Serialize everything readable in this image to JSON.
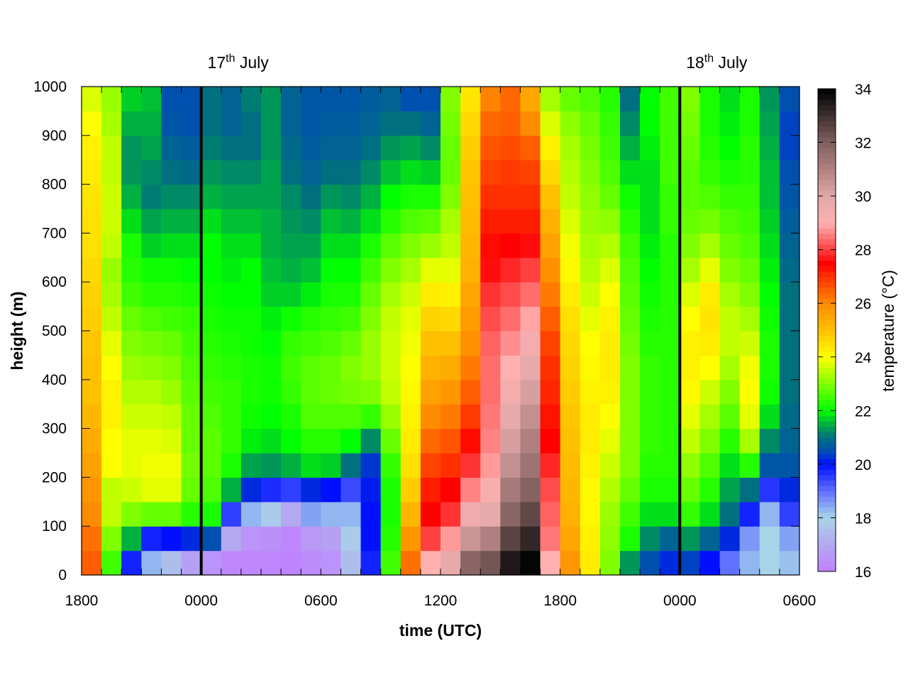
{
  "chart_data": {
    "type": "heatmap",
    "xlabel": "time (UTC)",
    "ylabel": "height (m)",
    "colorbar_label": "temperature (°C)",
    "x_unit": "hours since 1800 UTC 16th July",
    "xlim": [
      0,
      36
    ],
    "ylim": [
      0,
      1000
    ],
    "zlim": [
      16,
      34
    ],
    "x_ticks": [
      {
        "value": 0,
        "label": "1800"
      },
      {
        "value": 6,
        "label": "0000"
      },
      {
        "value": 12,
        "label": "0600"
      },
      {
        "value": 18,
        "label": "1200"
      },
      {
        "value": 24,
        "label": "1800"
      },
      {
        "value": 30,
        "label": "0000"
      },
      {
        "value": 36,
        "label": "0600"
      }
    ],
    "y_ticks": [
      {
        "value": 0,
        "label": "0"
      },
      {
        "value": 100,
        "label": "100"
      },
      {
        "value": 200,
        "label": "200"
      },
      {
        "value": 300,
        "label": "300"
      },
      {
        "value": 400,
        "label": "400"
      },
      {
        "value": 500,
        "label": "500"
      },
      {
        "value": 600,
        "label": "600"
      },
      {
        "value": 700,
        "label": "700"
      },
      {
        "value": 800,
        "label": "800"
      },
      {
        "value": 900,
        "label": "900"
      },
      {
        "value": 1000,
        "label": "1000"
      }
    ],
    "colorbar_ticks": [
      {
        "value": 16,
        "label": "16"
      },
      {
        "value": 18,
        "label": "18"
      },
      {
        "value": 20,
        "label": "20"
      },
      {
        "value": 22,
        "label": "22"
      },
      {
        "value": 24,
        "label": "24"
      },
      {
        "value": 26,
        "label": "26"
      },
      {
        "value": 28,
        "label": "28"
      },
      {
        "value": 30,
        "label": "30"
      },
      {
        "value": 32,
        "label": "32"
      },
      {
        "value": 34,
        "label": "34"
      }
    ],
    "date_markers": [
      {
        "hour": 6,
        "num": "17",
        "sup": "th",
        "month": " July"
      },
      {
        "hour": 30,
        "num": "18",
        "sup": "th",
        "month": " July"
      }
    ],
    "colormap": [
      [
        16,
        "#c080ff"
      ],
      [
        17,
        "#b4a8f0"
      ],
      [
        18,
        "#a8d4e8"
      ],
      [
        19,
        "#6070ff"
      ],
      [
        20,
        "#0010ff"
      ],
      [
        20.5,
        "#0050b0"
      ],
      [
        21,
        "#007080"
      ],
      [
        21.5,
        "#00b040"
      ],
      [
        22,
        "#00ff00"
      ],
      [
        23,
        "#80ff00"
      ],
      [
        24,
        "#ffff00"
      ],
      [
        25,
        "#ffc000"
      ],
      [
        26,
        "#ff8c00"
      ],
      [
        27,
        "#ff3000"
      ],
      [
        27.5,
        "#ff0000"
      ],
      [
        28,
        "#ff4040"
      ],
      [
        29,
        "#ffb0b0"
      ],
      [
        30,
        "#e0a8a8"
      ],
      [
        31,
        "#b08080"
      ],
      [
        32,
        "#806060"
      ],
      [
        33,
        "#403030"
      ],
      [
        34,
        "#000000"
      ]
    ],
    "x_bin_hours": 1,
    "height_levels_m": [
      25,
      75,
      125,
      175,
      225,
      275,
      325,
      375,
      425,
      475,
      525,
      575,
      625,
      675,
      725,
      775,
      825,
      875,
      925,
      975
    ],
    "temperature_by_hour": [
      [
        26.5,
        26.3,
        26,
        25.8,
        25.6,
        25.4,
        25.2,
        25,
        25,
        24.9,
        24.8,
        24.7,
        24.6,
        24.5,
        24.5,
        24.4,
        24.3,
        24.2,
        24,
        23.7
      ],
      [
        22.5,
        23,
        23.5,
        23.5,
        24,
        24,
        24.2,
        24.2,
        24,
        23.8,
        23.5,
        23.3,
        23.2,
        23.5,
        23.6,
        23.6,
        23.5,
        23.5,
        23.3,
        23.2
      ],
      [
        19.8,
        21.5,
        23,
        23.6,
        23.8,
        23.8,
        23.6,
        23.4,
        23.2,
        23,
        22.8,
        22.5,
        22.3,
        22.2,
        21.8,
        21.5,
        21.3,
        21.3,
        21.5,
        21.7
      ],
      [
        18.3,
        19.8,
        22.8,
        23.8,
        23.9,
        23.8,
        23.6,
        23.4,
        23.1,
        22.9,
        22.6,
        22.3,
        22.1,
        21.7,
        21.4,
        21.1,
        21.2,
        21.4,
        21.5,
        21.6
      ],
      [
        17.5,
        20,
        22.8,
        23.8,
        23.9,
        23.7,
        23.5,
        23.2,
        23,
        22.8,
        22.5,
        22.3,
        22.1,
        21.8,
        21.5,
        21.2,
        21,
        20.8,
        20.6,
        20.5
      ],
      [
        16.8,
        20.2,
        22.3,
        22.8,
        22.9,
        22.8,
        22.8,
        22.7,
        22.6,
        22.5,
        22.4,
        22.2,
        22,
        21.8,
        21.5,
        21.2,
        20.9,
        20.7,
        20.5,
        20.5
      ],
      [
        16.5,
        20.5,
        22.2,
        22.6,
        22.7,
        22.7,
        22.6,
        22.5,
        22.4,
        22.3,
        22.2,
        22.1,
        22,
        22,
        21.8,
        21.5,
        21.3,
        21.1,
        21,
        21
      ],
      [
        16.2,
        17,
        19.5,
        21.5,
        22.2,
        22.4,
        22.4,
        22.4,
        22.3,
        22.2,
        22.1,
        22,
        21.9,
        21.8,
        21.6,
        21.4,
        21.2,
        21,
        20.8,
        20.8
      ],
      [
        16.2,
        16.5,
        18.3,
        20.2,
        21.4,
        21.9,
        22.1,
        22.2,
        22.2,
        22.1,
        22.1,
        22,
        22,
        21.8,
        21.6,
        21.4,
        21.2,
        21,
        21,
        21.1
      ],
      [
        16.2,
        16.4,
        17.8,
        19.7,
        21.3,
        21.8,
        22,
        22.1,
        22.1,
        22,
        21.9,
        21.7,
        21.6,
        21.5,
        21.5,
        21.4,
        21.4,
        21.3,
        21.3,
        21.3
      ],
      [
        16.1,
        16.2,
        17,
        19.5,
        21.5,
        22,
        22.2,
        22.4,
        22.5,
        22.4,
        22.1,
        21.7,
        21.5,
        21.4,
        21.3,
        21.2,
        21,
        20.9,
        20.8,
        20.8
      ],
      [
        16.3,
        16.6,
        18.5,
        20.2,
        21.8,
        22.3,
        22.6,
        22.7,
        22.7,
        22.5,
        22.3,
        21.9,
        21.6,
        21.4,
        21.2,
        21,
        20.8,
        20.7,
        20.6,
        20.6
      ],
      [
        16.5,
        16.8,
        18.3,
        20,
        21.7,
        22.3,
        22.6,
        22.8,
        22.8,
        22.6,
        22.4,
        22.2,
        22,
        21.8,
        21.6,
        21.3,
        21,
        20.8,
        20.7,
        20.6
      ],
      [
        17.5,
        17.8,
        18.3,
        19.4,
        21,
        22,
        22.6,
        22.9,
        23,
        22.8,
        22.5,
        22.2,
        22,
        21.8,
        21.5,
        21.2,
        21,
        20.8,
        20.7,
        20.6
      ],
      [
        19.8,
        20,
        20,
        20.1,
        20.3,
        21.2,
        22.4,
        23,
        23.2,
        23.2,
        23,
        22.8,
        22.5,
        22.2,
        21.8,
        21.5,
        21.2,
        21,
        20.8,
        20.7
      ],
      [
        22.5,
        22.3,
        22.2,
        22.2,
        22.4,
        22.8,
        23.2,
        23.5,
        23.6,
        23.6,
        23.5,
        23.3,
        23,
        22.7,
        22.3,
        22,
        21.6,
        21.3,
        21,
        20.8
      ],
      [
        26.3,
        25.8,
        25.2,
        24.8,
        24.5,
        24.3,
        24.2,
        24.1,
        24,
        23.9,
        23.8,
        23.6,
        23.3,
        23,
        22.6,
        22.2,
        21.8,
        21.4,
        21,
        20.5
      ],
      [
        29,
        28,
        27.5,
        27.2,
        26.8,
        26.4,
        26,
        25.6,
        25.3,
        25,
        24.7,
        24.3,
        23.8,
        23.2,
        22.7,
        22.2,
        21.7,
        21.2,
        20.8,
        20.5
      ],
      [
        29.8,
        28.8,
        27.9,
        27.5,
        27,
        26.6,
        26.2,
        25.8,
        25.4,
        25,
        24.6,
        24.2,
        23.8,
        23.5,
        23.3,
        23,
        22.8,
        22.8,
        22.9,
        23
      ],
      [
        31.8,
        30.5,
        29.5,
        28.6,
        27.9,
        27.4,
        26.9,
        26.5,
        26.2,
        25.9,
        25.7,
        25.5,
        25.3,
        25.2,
        25.1,
        25,
        24.9,
        24.8,
        24.6,
        24.4
      ],
      [
        32.2,
        31,
        29.8,
        29.2,
        28.8,
        28.6,
        28.5,
        28.4,
        28.4,
        28.3,
        28.1,
        27.9,
        27.6,
        27.4,
        27.2,
        27,
        26.8,
        26.6,
        26.4,
        26.1
      ],
      [
        33.5,
        32.6,
        31.8,
        31.2,
        30.6,
        30.2,
        29.8,
        29.4,
        29,
        28.7,
        28.4,
        28.1,
        27.8,
        27.5,
        27.2,
        27,
        26.9,
        26.7,
        26.5,
        26.4
      ],
      [
        33.9,
        33.2,
        32.5,
        31.9,
        31.4,
        31,
        30.6,
        30.2,
        29.8,
        29.4,
        28.9,
        28.4,
        28,
        27.6,
        27.2,
        27,
        26.8,
        26.5,
        26,
        25.5
      ],
      [
        29,
        28.5,
        28.3,
        28.1,
        27.8,
        27.5,
        27.3,
        27.1,
        27,
        26.8,
        26.5,
        26.2,
        25.9,
        25.6,
        25.3,
        25,
        24.6,
        24.2,
        23.7,
        23.3
      ],
      [
        25.8,
        25.5,
        25.3,
        25.2,
        25.1,
        25,
        24.9,
        24.8,
        24.7,
        24.6,
        24.5,
        24.3,
        24.1,
        23.9,
        23.7,
        23.5,
        23.4,
        23.3,
        23.1,
        22.8
      ],
      [
        24.3,
        24.2,
        24.1,
        24.1,
        24.2,
        24.3,
        24.3,
        24.2,
        24.1,
        24,
        23.8,
        23.6,
        23.4,
        23.3,
        23.2,
        23.1,
        23,
        22.9,
        22.8,
        22.6
      ],
      [
        23,
        23.1,
        23.2,
        23.4,
        23.6,
        23.8,
        24,
        24.2,
        24.3,
        24.3,
        24.2,
        24,
        23.7,
        23.4,
        23.1,
        22.8,
        22.6,
        22.5,
        22.4,
        22.3
      ],
      [
        21.3,
        22.2,
        22.5,
        22.8,
        23,
        23,
        23,
        23,
        23,
        22.9,
        22.8,
        22.7,
        22.6,
        22.5,
        22.3,
        22.1,
        21.8,
        21.5,
        21.2,
        21
      ],
      [
        20.5,
        21.2,
        21.8,
        22.2,
        22.3,
        22.4,
        22.4,
        22.4,
        22.4,
        22.3,
        22.2,
        22.1,
        22,
        21.9,
        21.8,
        21.8,
        21.8,
        21.9,
        22,
        22
      ],
      [
        20.2,
        20.8,
        21.8,
        22.2,
        22.3,
        22.3,
        22.3,
        22.3,
        22.3,
        22.3,
        22.3,
        22.3,
        22.3,
        22.3,
        22.4,
        22.4,
        22.5,
        22.5,
        22.5,
        22.5
      ],
      [
        20.4,
        21.3,
        22.4,
        22.8,
        23.1,
        23.5,
        23.8,
        24.1,
        24.2,
        24.2,
        24,
        23.7,
        23.3,
        23,
        22.8,
        22.7,
        22.7,
        22.8,
        22.9,
        23
      ],
      [
        20,
        20.8,
        21.8,
        22.3,
        22.6,
        23,
        23.3,
        23.6,
        24,
        24.3,
        24.4,
        24.3,
        23.8,
        23.3,
        22.9,
        22.6,
        22.4,
        22.3,
        22.2,
        22.2
      ],
      [
        19,
        20.2,
        21,
        21.4,
        21.8,
        22.3,
        22.7,
        23,
        23.3,
        23.5,
        23.5,
        23.3,
        23,
        22.8,
        22.6,
        22.4,
        22.2,
        22,
        21.9,
        21.8
      ],
      [
        18.3,
        18.6,
        19.8,
        21,
        22.3,
        23.3,
        23.8,
        24,
        23.9,
        23.6,
        23.3,
        23,
        22.8,
        22.6,
        22.5,
        22.4,
        22.3,
        22.3,
        22.2,
        22.2
      ],
      [
        18,
        18,
        18.3,
        19.6,
        20.6,
        21.2,
        21.8,
        22.1,
        22.2,
        22.2,
        22.1,
        22,
        21.9,
        21.8,
        21.7,
        21.6,
        21.6,
        21.5,
        21.4,
        21.3
      ],
      [
        18.2,
        18.5,
        19.5,
        20.2,
        20.6,
        20.8,
        20.9,
        21,
        21,
        21,
        21,
        21,
        20.9,
        20.8,
        20.7,
        20.6,
        20.5,
        20.4,
        20.4,
        20.5
      ]
    ]
  }
}
